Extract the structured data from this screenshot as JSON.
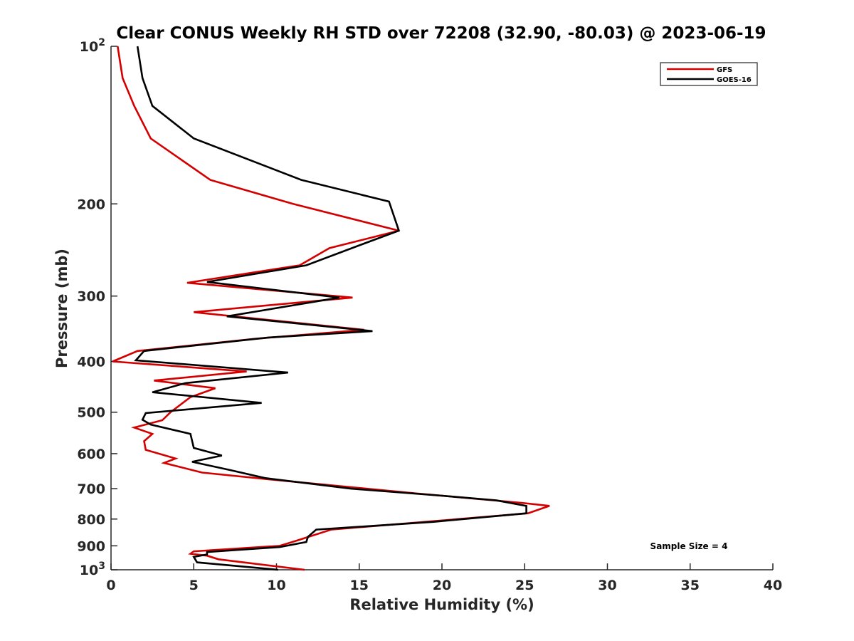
{
  "chart_data": {
    "type": "line",
    "title": "Clear CONUS Weekly RH STD over 72208 (32.90, -80.03) @ 2023-06-19",
    "xlabel": "Relative Humidity (%)",
    "ylabel": "Pressure (mb)",
    "xlim": [
      0,
      40
    ],
    "ylim": [
      100,
      1000
    ],
    "yscale": "log",
    "y_reversed": true,
    "xticks": [
      "0",
      "5",
      "10",
      "15",
      "20",
      "25",
      "30",
      "35",
      "40"
    ],
    "yticks": [
      {
        "value": 100,
        "base": "10",
        "exp": "2"
      },
      {
        "value": 200,
        "label": "200"
      },
      {
        "value": 300,
        "label": "300"
      },
      {
        "value": 400,
        "label": "400"
      },
      {
        "value": 500,
        "label": "500"
      },
      {
        "value": 600,
        "label": "600"
      },
      {
        "value": 700,
        "label": "700"
      },
      {
        "value": 800,
        "label": "800"
      },
      {
        "value": 900,
        "label": "900"
      },
      {
        "value": 1000,
        "base": "10",
        "exp": "3"
      }
    ],
    "grid": false,
    "legend": "top-right",
    "annotation": "Sample Size = 4",
    "series": [
      {
        "name": "GFS",
        "color": "#d40000",
        "points": [
          [
            0.4,
            100
          ],
          [
            0.7,
            115
          ],
          [
            1.4,
            130
          ],
          [
            2.4,
            150
          ],
          [
            6.0,
            180
          ],
          [
            11.0,
            200
          ],
          [
            17.4,
            225
          ],
          [
            13.2,
            243
          ],
          [
            11.4,
            262
          ],
          [
            4.6,
            283
          ],
          [
            14.6,
            302
          ],
          [
            5.0,
            322
          ],
          [
            15.3,
            348
          ],
          [
            8.7,
            362
          ],
          [
            1.6,
            382
          ],
          [
            0.1,
            400
          ],
          [
            8.2,
            418
          ],
          [
            2.6,
            435
          ],
          [
            6.3,
            450
          ],
          [
            4.8,
            468
          ],
          [
            3.6,
            500
          ],
          [
            3.1,
            518
          ],
          [
            1.4,
            535
          ],
          [
            2.5,
            550
          ],
          [
            2.0,
            568
          ],
          [
            2.1,
            590
          ],
          [
            3.9,
            613
          ],
          [
            3.2,
            625
          ],
          [
            5.5,
            652
          ],
          [
            9.8,
            673
          ],
          [
            18.5,
            715
          ],
          [
            24.8,
            745
          ],
          [
            26.5,
            755
          ],
          [
            25.2,
            780
          ],
          [
            19.0,
            810
          ],
          [
            13.3,
            838
          ],
          [
            11.2,
            880
          ],
          [
            10.2,
            900
          ],
          [
            5.0,
            922
          ],
          [
            4.8,
            932
          ],
          [
            5.8,
            940
          ],
          [
            6.5,
            955
          ],
          [
            8.0,
            968
          ],
          [
            11.7,
            1000
          ]
        ]
      },
      {
        "name": "GOES-16",
        "color": "#000000",
        "points": [
          [
            1.6,
            100
          ],
          [
            1.9,
            115
          ],
          [
            2.5,
            130
          ],
          [
            5.0,
            150
          ],
          [
            11.5,
            180
          ],
          [
            16.8,
            198
          ],
          [
            17.4,
            225
          ],
          [
            15.0,
            240
          ],
          [
            11.8,
            262
          ],
          [
            5.8,
            282
          ],
          [
            13.8,
            302
          ],
          [
            7.0,
            328
          ],
          [
            15.8,
            350
          ],
          [
            9.5,
            360
          ],
          [
            2.0,
            382
          ],
          [
            1.5,
            398
          ],
          [
            10.7,
            420
          ],
          [
            4.5,
            440
          ],
          [
            2.5,
            458
          ],
          [
            9.1,
            480
          ],
          [
            2.1,
            502
          ],
          [
            1.9,
            517
          ],
          [
            2.4,
            528
          ],
          [
            4.8,
            550
          ],
          [
            5.0,
            585
          ],
          [
            6.7,
            605
          ],
          [
            4.9,
            622
          ],
          [
            7.2,
            645
          ],
          [
            9.3,
            668
          ],
          [
            14.5,
            700
          ],
          [
            20.0,
            722
          ],
          [
            23.3,
            737
          ],
          [
            25.1,
            755
          ],
          [
            25.1,
            780
          ],
          [
            19.5,
            810
          ],
          [
            12.4,
            838
          ],
          [
            11.9,
            865
          ],
          [
            11.8,
            885
          ],
          [
            10.2,
            905
          ],
          [
            5.8,
            925
          ],
          [
            5.8,
            935
          ],
          [
            5.0,
            945
          ],
          [
            5.2,
            968
          ],
          [
            10.1,
            1000
          ]
        ]
      }
    ]
  }
}
